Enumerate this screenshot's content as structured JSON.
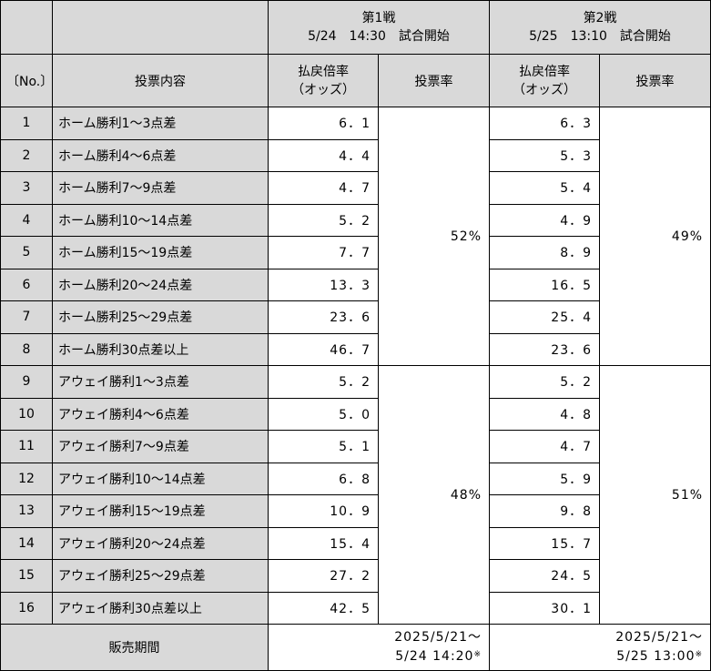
{
  "header": {
    "game1_title": "第1戦",
    "game1_time": "5/24　14:30　試合開始",
    "game2_title": "第2戦",
    "game2_time": "5/25　13:10　試合開始",
    "no_label": "〔No.〕",
    "content_label": "投票内容",
    "odds_label_1": "払戻倍率",
    "odds_label_2": "（オッズ）",
    "vote_rate_label": "投票率"
  },
  "rows": [
    {
      "no": "1",
      "content": "ホーム勝利1～3点差",
      "odds1": "6．1",
      "odds2": "6．3"
    },
    {
      "no": "2",
      "content": "ホーム勝利4～6点差",
      "odds1": "4．4",
      "odds2": "5．3"
    },
    {
      "no": "3",
      "content": "ホーム勝利7～9点差",
      "odds1": "4．7",
      "odds2": "5．4"
    },
    {
      "no": "4",
      "content": "ホーム勝利10～14点差",
      "odds1": "5．2",
      "odds2": "4．9"
    },
    {
      "no": "5",
      "content": "ホーム勝利15～19点差",
      "odds1": "7．7",
      "odds2": "8．9"
    },
    {
      "no": "6",
      "content": "ホーム勝利20～24点差",
      "odds1": "13．3",
      "odds2": "16．5"
    },
    {
      "no": "7",
      "content": "ホーム勝利25～29点差",
      "odds1": "23．6",
      "odds2": "25．4"
    },
    {
      "no": "8",
      "content": "ホーム勝利30点差以上",
      "odds1": "46．7",
      "odds2": "23．6"
    },
    {
      "no": "9",
      "content": "アウェイ勝利1～3点差",
      "odds1": "5．2",
      "odds2": "5．2"
    },
    {
      "no": "10",
      "content": "アウェイ勝利4～6点差",
      "odds1": "5．0",
      "odds2": "4．8"
    },
    {
      "no": "11",
      "content": "アウェイ勝利7～9点差",
      "odds1": "5．1",
      "odds2": "4．7"
    },
    {
      "no": "12",
      "content": "アウェイ勝利10～14点差",
      "odds1": "6．8",
      "odds2": "5．9"
    },
    {
      "no": "13",
      "content": "アウェイ勝利15～19点差",
      "odds1": "10．9",
      "odds2": "9．8"
    },
    {
      "no": "14",
      "content": "アウェイ勝利20～24点差",
      "odds1": "15．4",
      "odds2": "15．7"
    },
    {
      "no": "15",
      "content": "アウェイ勝利25～29点差",
      "odds1": "27．2",
      "odds2": "24．5"
    },
    {
      "no": "16",
      "content": "アウェイ勝利30点差以上",
      "odds1": "42．5",
      "odds2": "30．1"
    }
  ],
  "vote_rates": {
    "game1_home": "52%",
    "game1_away": "48%",
    "game2_home": "49%",
    "game2_away": "51%"
  },
  "sales": {
    "label": "販売期間",
    "game1_line1": "2025/5/21～",
    "game1_line2": "5/24 14:20",
    "game2_line1": "2025/5/21～",
    "game2_line2": "5/25 13:00",
    "note_mark": "※"
  },
  "colors": {
    "header_bg": "#d9d9d9",
    "border": "#000000"
  }
}
